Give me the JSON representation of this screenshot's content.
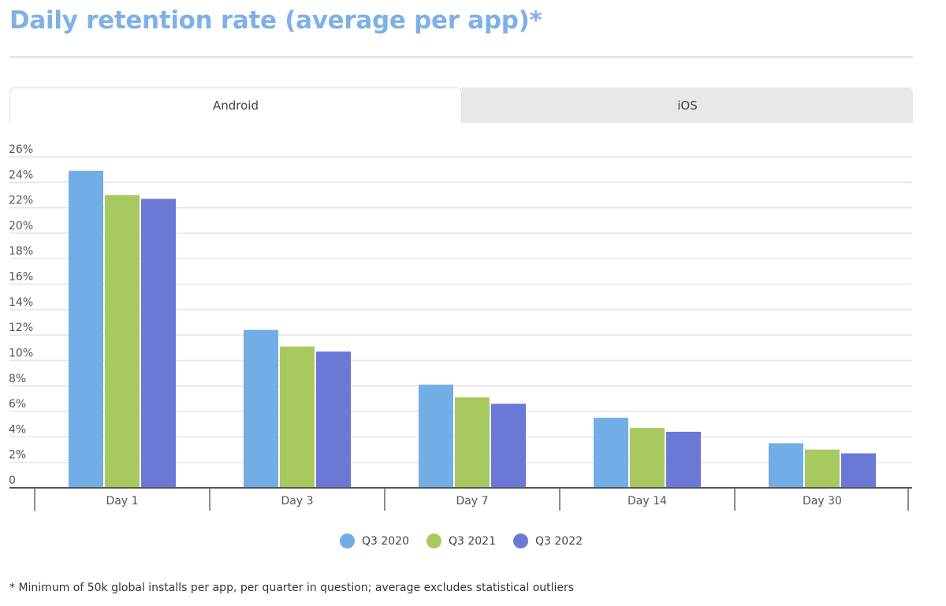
{
  "title": "Daily retention rate (average per app)*",
  "tabs": [
    {
      "label": "Android",
      "active": true
    },
    {
      "label": "iOS",
      "active": false
    }
  ],
  "footnote": "* Minimum of 50k global installs per app, per quarter in question; average excludes statistical outliers",
  "chart_data": {
    "type": "bar",
    "title": "Daily retention rate (average per app)*",
    "xlabel": "",
    "ylabel": "",
    "ylim": [
      0,
      26
    ],
    "yticks": [
      0,
      2,
      4,
      6,
      8,
      10,
      12,
      14,
      16,
      18,
      20,
      22,
      24,
      26
    ],
    "ytick_labels": [
      "0",
      "2%",
      "4%",
      "6%",
      "8%",
      "10%",
      "12%",
      "14%",
      "16%",
      "18%",
      "20%",
      "22%",
      "24%",
      "26%"
    ],
    "grid": true,
    "legend_position": "bottom-center",
    "categories": [
      "Day 1",
      "Day 3",
      "Day 7",
      "Day 14",
      "Day 30"
    ],
    "series": [
      {
        "name": "Q3 2020",
        "color": "#72ade6",
        "values": [
          24.9,
          12.4,
          8.1,
          5.5,
          3.5
        ]
      },
      {
        "name": "Q3 2021",
        "color": "#a8c95f",
        "values": [
          23.0,
          11.1,
          7.1,
          4.7,
          3.0
        ]
      },
      {
        "name": "Q3 2022",
        "color": "#6b78d6",
        "values": [
          22.7,
          10.7,
          6.6,
          4.4,
          2.7
        ]
      }
    ]
  }
}
